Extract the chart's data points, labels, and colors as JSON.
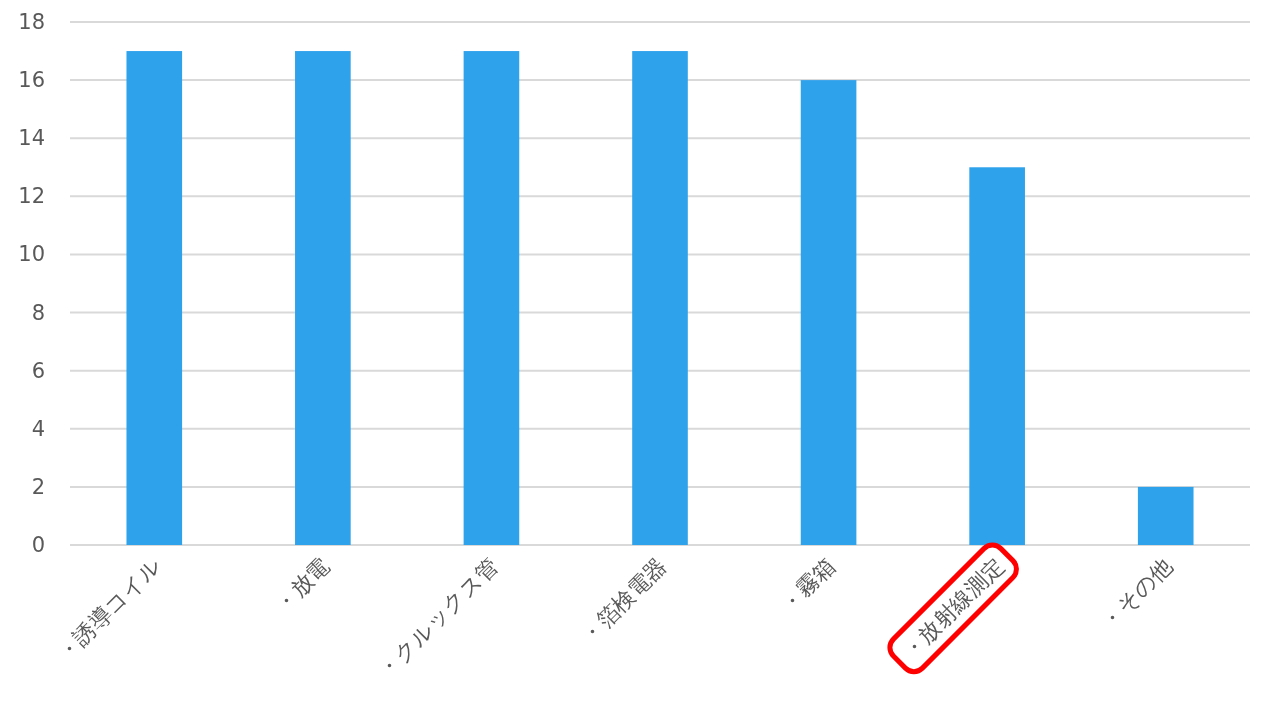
{
  "chart_data": {
    "type": "bar",
    "categories": [
      "・誘導コイル",
      "・放電",
      "・クルックス管",
      "・箔検電器",
      "・霧箱",
      "・放射線測定",
      "・その他"
    ],
    "values": [
      17,
      17,
      17,
      17,
      16,
      13,
      2
    ],
    "color": "#2fa2ec",
    "ylim": [
      0,
      18
    ],
    "yticks": [
      0,
      2,
      4,
      6,
      8,
      10,
      12,
      14,
      16,
      18
    ],
    "grid": "y"
  }
}
